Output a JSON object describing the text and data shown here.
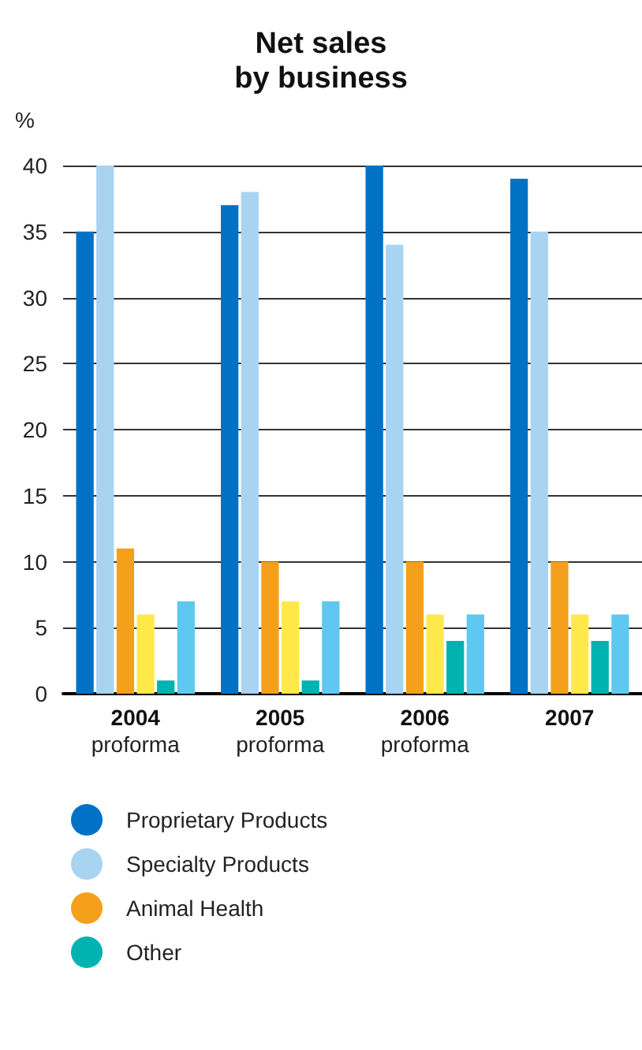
{
  "chart_data": {
    "type": "bar",
    "title": "Net sales\nby business",
    "ylabel": "%",
    "categories": [
      "2004\nproforma",
      "2005\nproforma",
      "2006\nproforma",
      "2007"
    ],
    "series": [
      {
        "name": "Proprietary Products",
        "color": "#0072c6",
        "values": [
          35,
          37,
          40,
          39
        ]
      },
      {
        "name": "Specialty Products",
        "color": "#a8d4f2",
        "values": [
          40,
          38,
          34,
          35
        ]
      },
      {
        "name": "Animal Health",
        "color": "#f5a01a",
        "values": [
          11,
          10,
          10,
          10
        ]
      },
      {
        "color": "#ffe94a",
        "values": [
          6,
          7,
          6,
          6
        ]
      },
      {
        "name": "Other",
        "color": "#00b3b0",
        "values": [
          1,
          1,
          4,
          4
        ]
      },
      {
        "color": "#5fc8f0",
        "values": [
          7,
          7,
          6,
          6
        ]
      }
    ],
    "ylim": [
      0,
      40
    ],
    "yticks": [
      0,
      5,
      10,
      15,
      20,
      25,
      30,
      35,
      40
    ],
    "grid": "y",
    "legend": "bottom"
  }
}
